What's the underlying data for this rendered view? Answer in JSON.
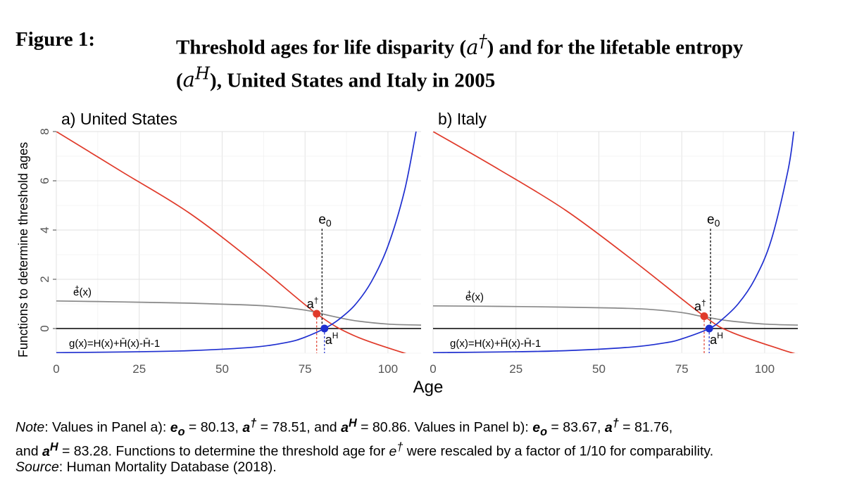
{
  "figure": {
    "label": "Figure 1:",
    "title_part1": "Threshold ages for life disparity (",
    "title_sym1": "a",
    "title_sup1": "†",
    "title_part2": ") and for the lifetable entropy",
    "title_sym2": "a",
    "title_sup2": "H",
    "title_part3": "), United States and Italy in 2005"
  },
  "note": {
    "label": "Note",
    "s1": ": Values in Panel a): ",
    "e0": "e",
    "e0_sub": "o",
    "eq1": " = 80.13, ",
    "a1": "a",
    "a1_sup": "†",
    "eq2": " = 78.51, and ",
    "aH1": "a",
    "aH1_sup": "H",
    "eq3": " = 80.86. Values in Panel b): ",
    "e0b": "e",
    "e0b_sub": "o",
    "eq4": " = 83.67, ",
    "a2": "a",
    "a2_sup": "†",
    "eq5": " = 81.76,",
    "s2": "and ",
    "aH2": "a",
    "aH2_sup": "H",
    "eq6": " = 83.28. Functions to determine the threshold age for ",
    "edag": "e",
    "edag_sup": "†",
    "eq7": " were rescaled by a factor of 1/10 for comparability.",
    "source_label": "Source",
    "source_text": ": Human Mortality Database (2018)."
  },
  "chart_data": [
    {
      "type": "line",
      "panel": "a) United States",
      "xlabel": "Age",
      "ylabel": "Functions to determine threshold ages",
      "xlim": [
        0,
        110
      ],
      "ylim": [
        -1,
        8
      ],
      "xticks": [
        "0",
        "25",
        "50",
        "75",
        "100"
      ],
      "yticks": [
        "0",
        "2",
        "4",
        "6",
        "8"
      ],
      "grid": true,
      "series": [
        {
          "name": "red",
          "x": [
            0,
            20,
            40,
            60,
            78.51,
            90,
            105,
            110
          ],
          "y": [
            8.0,
            6.35,
            4.7,
            2.65,
            0.6,
            -0.3,
            -1.0,
            -1.2
          ]
        },
        {
          "name": "e†(x)",
          "x": [
            0,
            20,
            40,
            55,
            65,
            75,
            80,
            85,
            90,
            100,
            110
          ],
          "y": [
            1.12,
            1.08,
            1.03,
            0.97,
            0.9,
            0.75,
            0.6,
            0.45,
            0.32,
            0.18,
            0.14
          ]
        },
        {
          "name": "g(x)=H(x)+H̄(x)-H̄-1",
          "x": [
            0,
            20,
            40,
            60,
            70,
            75,
            80.86,
            85,
            90,
            95,
            100,
            105,
            108.5
          ],
          "y": [
            -0.98,
            -0.95,
            -0.9,
            -0.75,
            -0.55,
            -0.35,
            0.0,
            0.35,
            0.95,
            1.9,
            3.35,
            5.6,
            8.0
          ]
        }
      ],
      "points": [
        {
          "name": "a†",
          "x": 78.51,
          "y": 0.6
        },
        {
          "name": "aH",
          "x": 80.86,
          "y": 0.0
        }
      ],
      "vlines": [
        {
          "name": "e0",
          "x": 80.13
        }
      ],
      "labels": {
        "e0": "e",
        "e0_sub": "0",
        "adag": "a",
        "adag_sup": "†",
        "aH": "a",
        "aH_sup": "H",
        "edag_fn": "(x)",
        "edag_fn_sym": "e",
        "edag_fn_sup": "†",
        "g": "g(x)=H(x)+H̄(x)-H̄-1"
      }
    },
    {
      "type": "line",
      "panel": "b) Italy",
      "xlabel": "Age",
      "ylabel": "",
      "xlim": [
        0,
        110
      ],
      "ylim": [
        -1,
        8
      ],
      "xticks": [
        "0",
        "25",
        "50",
        "75",
        "100"
      ],
      "yticks": [],
      "grid": true,
      "series": [
        {
          "name": "red",
          "x": [
            0,
            20,
            40,
            60,
            81.76,
            90,
            105,
            110
          ],
          "y": [
            8.0,
            6.45,
            4.8,
            2.8,
            0.5,
            -0.15,
            -0.85,
            -1.05
          ]
        },
        {
          "name": "e†(x)",
          "x": [
            0,
            20,
            40,
            55,
            65,
            75,
            80,
            85,
            90,
            100,
            110
          ],
          "y": [
            0.92,
            0.9,
            0.87,
            0.83,
            0.78,
            0.65,
            0.52,
            0.4,
            0.3,
            0.18,
            0.14
          ]
        },
        {
          "name": "g(x)=H(x)+H̄(x)-H̄-1",
          "x": [
            0,
            20,
            40,
            60,
            70,
            75,
            83.28,
            87,
            92,
            97,
            102,
            107,
            108.8
          ],
          "y": [
            -0.98,
            -0.95,
            -0.9,
            -0.75,
            -0.58,
            -0.42,
            0.0,
            0.35,
            1.0,
            2.0,
            3.6,
            6.4,
            8.0
          ]
        }
      ],
      "points": [
        {
          "name": "a†",
          "x": 81.76,
          "y": 0.5
        },
        {
          "name": "aH",
          "x": 83.28,
          "y": 0.0
        }
      ],
      "vlines": [
        {
          "name": "e0",
          "x": 83.67
        }
      ],
      "labels": {
        "e0": "e",
        "e0_sub": "0",
        "adag": "a",
        "adag_sup": "†",
        "aH": "a",
        "aH_sup": "H",
        "edag_fn": "(x)",
        "edag_fn_sym": "e",
        "edag_fn_sup": "†",
        "g": "g(x)=H(x)+H̄(x)-H̄-1"
      }
    }
  ]
}
